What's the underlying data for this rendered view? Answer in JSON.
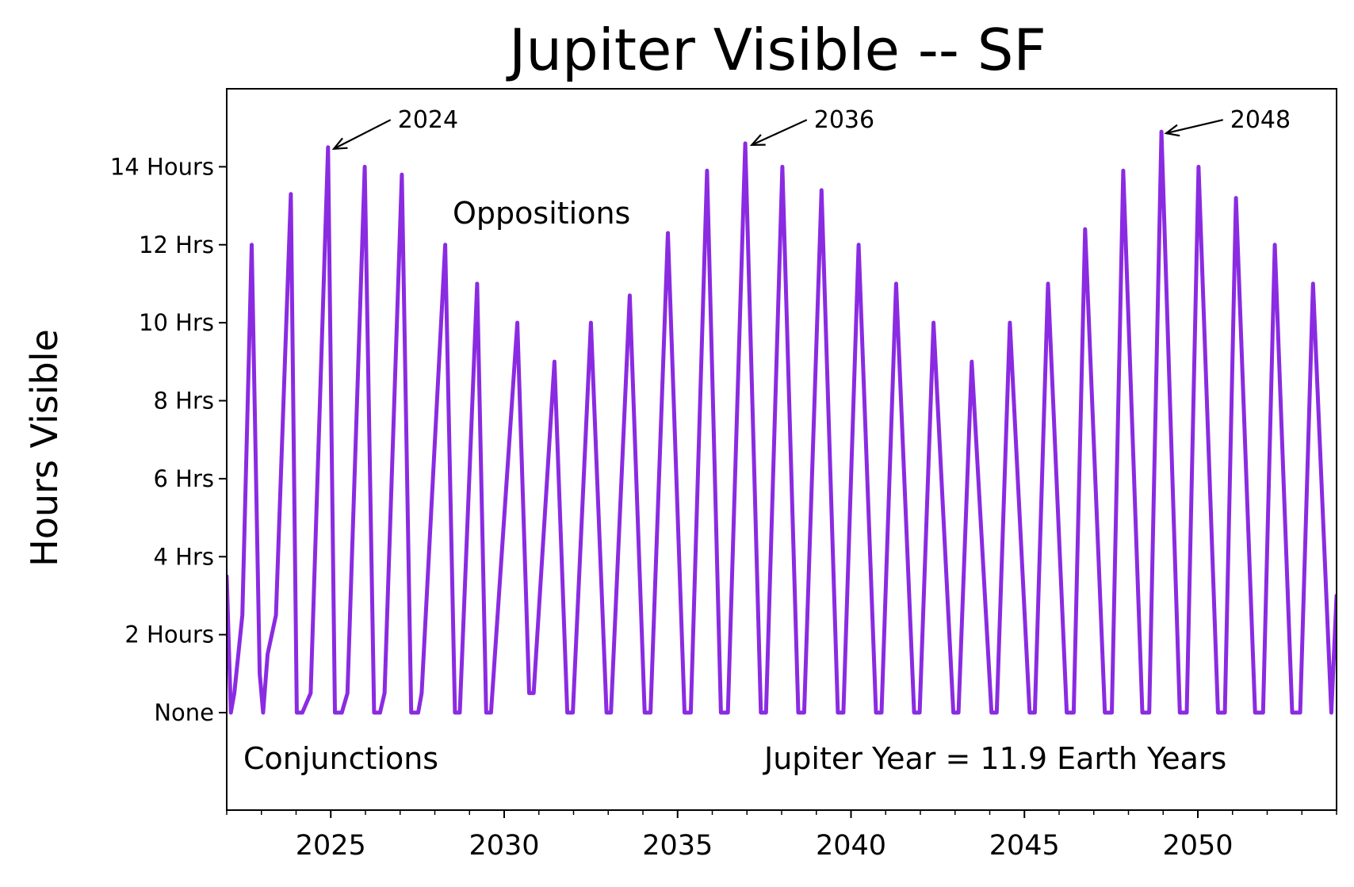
{
  "chart_data": {
    "type": "line",
    "title": "Jupiter Visible -- SF",
    "xlabel": "",
    "ylabel": "Hours Visible",
    "xlim": [
      2022.0,
      2054.0
    ],
    "ylim": [
      -2.5,
      16.0
    ],
    "xticks": [
      2025,
      2030,
      2035,
      2040,
      2045,
      2050
    ],
    "xtick_labels": [
      "2025",
      "2030",
      "2035",
      "2040",
      "2045",
      "2050"
    ],
    "yticks": [
      0,
      2,
      4,
      6,
      8,
      10,
      12,
      14
    ],
    "ytick_labels": [
      "None",
      "2 Hours",
      "4 Hrs",
      "6 Hrs",
      "8 Hrs",
      "10 Hrs",
      "12 Hrs",
      "14 Hours"
    ],
    "grid": false,
    "line_color": "#8a2be2",
    "series": [
      {
        "x": [
          2022.0,
          2022.12,
          2022.22,
          2022.45,
          2022.72,
          2022.95,
          2023.05,
          2023.18,
          2023.42,
          2023.85,
          2024.02,
          2024.18,
          2024.42,
          2024.92,
          2025.12,
          2025.32,
          2025.48,
          2025.98,
          2026.25,
          2026.42,
          2026.55,
          2027.05,
          2027.32,
          2027.52,
          2027.62,
          2028.3,
          2028.58,
          2028.72,
          2029.22,
          2029.48,
          2029.62,
          2030.38,
          2030.72,
          2030.85,
          2031.45,
          2031.82,
          2031.98,
          2032.5,
          2032.95,
          2033.08,
          2033.62,
          2034.05,
          2034.22,
          2034.72,
          2035.2,
          2035.38,
          2035.85,
          2036.25,
          2036.45,
          2036.95,
          2037.4,
          2037.55,
          2038.02,
          2038.48,
          2038.65,
          2039.15,
          2039.62,
          2039.78,
          2040.22,
          2040.72,
          2040.88,
          2041.3,
          2041.82,
          2041.98,
          2042.38,
          2042.95,
          2043.1,
          2043.48,
          2044.05,
          2044.2,
          2044.58,
          2045.15,
          2045.3,
          2045.68,
          2046.22,
          2046.42,
          2046.75,
          2047.32,
          2047.52,
          2047.85,
          2048.4,
          2048.6,
          2048.95,
          2049.48,
          2049.68,
          2050.02,
          2050.58,
          2050.78,
          2051.1,
          2051.65,
          2051.88,
          2052.22,
          2052.72,
          2052.95,
          2053.32,
          2053.85,
          2054.0
        ],
        "y": [
          3.5,
          0.0,
          0.5,
          2.5,
          12.0,
          1.0,
          0.0,
          1.5,
          2.5,
          13.3,
          0.0,
          0.0,
          0.5,
          14.5,
          0.0,
          0.0,
          0.5,
          14.0,
          0.0,
          0.0,
          0.5,
          13.8,
          0.0,
          0.0,
          0.5,
          12.0,
          0.0,
          0.0,
          11.0,
          0.0,
          0.0,
          10.0,
          0.5,
          0.5,
          9.0,
          0.0,
          0.0,
          10.0,
          0.0,
          0.0,
          10.7,
          0.0,
          0.0,
          12.3,
          0.0,
          0.0,
          13.9,
          0.0,
          0.0,
          14.6,
          0.0,
          0.0,
          14.0,
          0.0,
          0.0,
          13.4,
          0.0,
          0.0,
          12.0,
          0.0,
          0.0,
          11.0,
          0.0,
          0.0,
          10.0,
          0.0,
          0.0,
          9.0,
          0.0,
          0.0,
          10.0,
          0.0,
          0.0,
          11.0,
          0.0,
          0.0,
          12.4,
          0.0,
          0.0,
          13.9,
          0.0,
          0.0,
          14.9,
          0.0,
          0.0,
          14.0,
          0.0,
          0.0,
          13.2,
          0.0,
          0.0,
          12.0,
          0.0,
          0.0,
          11.0,
          0.0,
          3.0
        ]
      }
    ],
    "annotations": [
      {
        "text": "2024",
        "xy": [
          2024.95,
          14.5
        ],
        "xytext": [
          2027.0,
          15.0
        ]
      },
      {
        "text": "2036",
        "xy": [
          2037.0,
          14.6
        ],
        "xytext": [
          2039.0,
          15.0
        ]
      },
      {
        "text": "2048",
        "xy": [
          2048.95,
          14.9
        ],
        "xytext": [
          2051.0,
          15.0
        ]
      }
    ],
    "labels": {
      "oppositions": "Oppositions",
      "conjunctions": "Conjunctions",
      "jupiter_year": "Jupiter Year = 11.9 Earth Years"
    }
  }
}
